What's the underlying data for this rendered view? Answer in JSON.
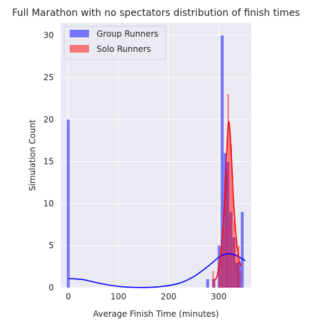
{
  "chart_data": {
    "type": "bar",
    "title": "Full Marathon with no spectators distribution of finish times",
    "xlabel": "Average Finish Time (minutes)",
    "ylabel": "Simulation Count",
    "xlim": [
      -15,
      365
    ],
    "ylim": [
      0,
      31.5
    ],
    "xticks": [
      0,
      100,
      200,
      300
    ],
    "yticks": [
      0,
      5,
      10,
      15,
      20,
      25,
      30
    ],
    "grid": true,
    "legend_position": "top-left",
    "series": [
      {
        "name": "Group Runners",
        "color": "#0000ff",
        "bin_width": 5.8,
        "bins": [
          {
            "x": 0,
            "count": 20
          },
          {
            "x": 278,
            "count": 1
          },
          {
            "x": 290,
            "count": 1
          },
          {
            "x": 301,
            "count": 5
          },
          {
            "x": 307,
            "count": 30
          },
          {
            "x": 313,
            "count": 16
          },
          {
            "x": 318,
            "count": 15
          },
          {
            "x": 324,
            "count": 9
          },
          {
            "x": 330,
            "count": 6
          },
          {
            "x": 336,
            "count": 3
          },
          {
            "x": 341,
            "count": 3
          },
          {
            "x": 347,
            "count": 9
          }
        ],
        "kde": {
          "x": [
            0,
            30,
            60,
            100,
            140,
            180,
            220,
            250,
            280,
            300,
            315,
            330,
            345,
            353
          ],
          "y": [
            1.1,
            0.95,
            0.55,
            0.15,
            0.02,
            0.1,
            0.5,
            1.3,
            2.6,
            3.6,
            4.0,
            3.95,
            3.5,
            3.2
          ]
        }
      },
      {
        "name": "Solo Runners",
        "color": "#ff0000",
        "bin_width": 2.9,
        "bins": [
          {
            "x": 289,
            "count": 2
          },
          {
            "x": 292,
            "count": 1
          },
          {
            "x": 301,
            "count": 3
          },
          {
            "x": 304,
            "count": 4
          },
          {
            "x": 307,
            "count": 5
          },
          {
            "x": 310,
            "count": 7
          },
          {
            "x": 313,
            "count": 13
          },
          {
            "x": 316,
            "count": 14
          },
          {
            "x": 319,
            "count": 23
          },
          {
            "x": 322,
            "count": 19
          },
          {
            "x": 325,
            "count": 17
          },
          {
            "x": 328,
            "count": 12
          },
          {
            "x": 331,
            "count": 8
          },
          {
            "x": 334,
            "count": 6
          },
          {
            "x": 337,
            "count": 4
          },
          {
            "x": 340,
            "count": 5
          },
          {
            "x": 343,
            "count": 2
          }
        ],
        "kde": {
          "x": [
            289,
            295,
            300,
            305,
            310,
            314,
            318,
            320,
            322,
            326,
            330,
            335,
            340,
            345
          ],
          "y": [
            0.9,
            1.1,
            2.3,
            4.5,
            8.5,
            13.5,
            18.5,
            19.7,
            19.0,
            15.0,
            10.0,
            6.0,
            3.5,
            2.5
          ]
        }
      }
    ]
  }
}
